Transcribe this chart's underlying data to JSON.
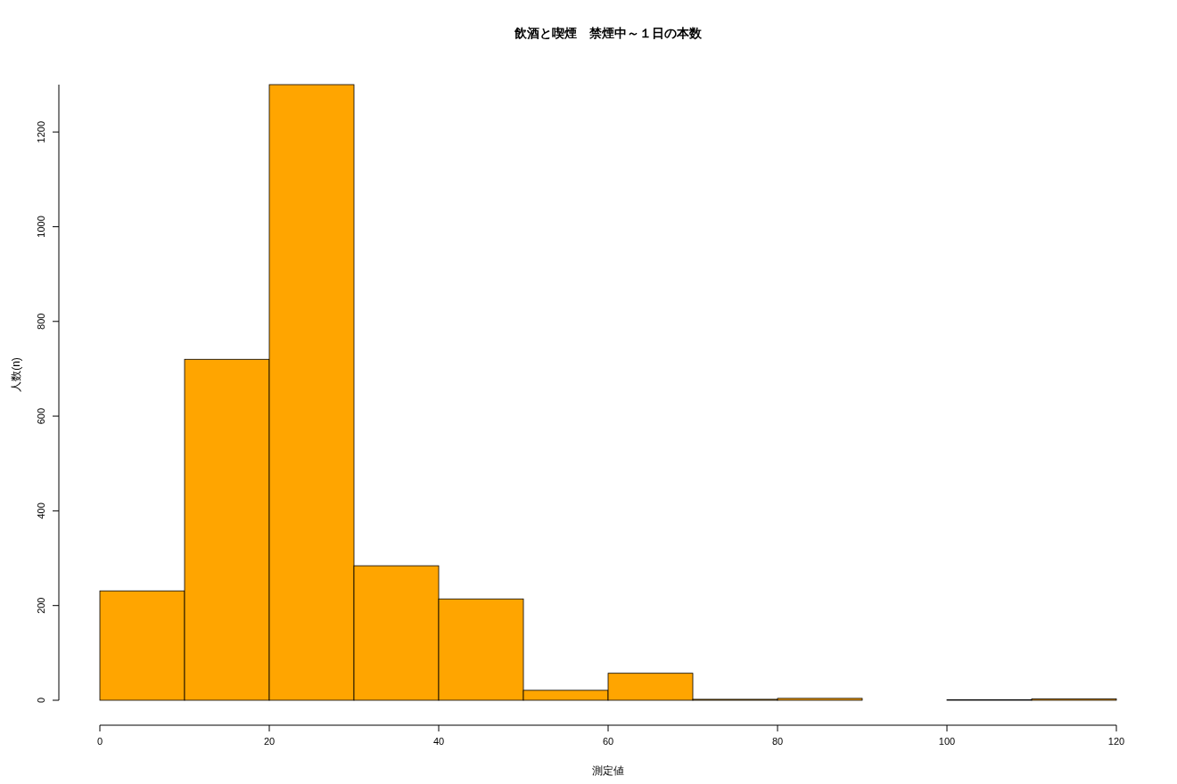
{
  "chart_data": {
    "type": "histogram",
    "title": "飲酒と喫煙　禁煙中～１日の本数",
    "xlabel": "測定値",
    "ylabel": "人数(n)",
    "bins": [
      0,
      10,
      20,
      30,
      40,
      50,
      60,
      70,
      80,
      90,
      100,
      110,
      120
    ],
    "values": [
      231,
      720,
      1300,
      284,
      214,
      21,
      57,
      2,
      4,
      0,
      1,
      3
    ],
    "color": "#ffa500",
    "xlim": [
      0,
      120
    ],
    "xticks": [
      0,
      20,
      40,
      60,
      80,
      100,
      120
    ],
    "ylim": [
      0,
      1300
    ],
    "yticks": [
      0,
      200,
      400,
      600,
      800,
      1000,
      1200
    ],
    "grid": false
  }
}
